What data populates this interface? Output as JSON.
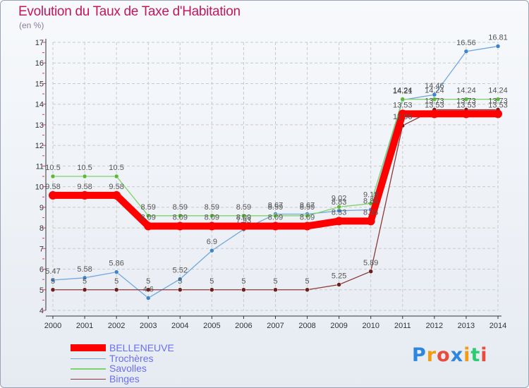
{
  "chart_data": {
    "type": "line",
    "title": "Evolution du Taux de Taxe d'Habitation",
    "ylabel": "(en %)",
    "xlabel": "",
    "ylim": [
      4,
      17
    ],
    "yticks": [
      4,
      5,
      6,
      7,
      8,
      9,
      10,
      11,
      12,
      13,
      14,
      15,
      16,
      17
    ],
    "categories": [
      "2000",
      "2001",
      "2002",
      "2003",
      "2004",
      "2005",
      "2006",
      "2007",
      "2008",
      "2009",
      "2010",
      "2011",
      "2012",
      "2013",
      "2014"
    ],
    "grid": true,
    "legend_position": "bottom-left",
    "series": [
      {
        "name": "BELLENEUVE",
        "color": "#ff0000",
        "emphasis": true,
        "values": [
          9.58,
          9.58,
          9.58,
          8.09,
          8.09,
          8.09,
          8.09,
          8.09,
          8.09,
          8.33,
          8.33,
          13.53,
          13.53,
          13.53,
          13.53
        ],
        "labels": [
          "9.58",
          "9.58",
          "9.58",
          "8.09",
          "8.09",
          "8.09",
          "8.09",
          "8.09",
          "8.09",
          "8.33",
          "8.33",
          "13.53",
          "13.53",
          "13.53",
          "13.53"
        ]
      },
      {
        "name": "Trochères",
        "color": "#6fa8dc",
        "point_color": "#3d85c6",
        "values": [
          5.47,
          5.58,
          5.86,
          4.6,
          5.52,
          6.9,
          7.93,
          8.67,
          8.67,
          8.83,
          8.88,
          14.21,
          14.46,
          16.56,
          16.81
        ],
        "labels": [
          "5.47",
          "5.58",
          "5.86",
          "4.6",
          "5.52",
          "6.9",
          "7.93",
          "8.67",
          "8.67",
          "8.83",
          "8.88",
          "14.21",
          "14.46",
          "16.56",
          "16.81"
        ]
      },
      {
        "name": "Savolles",
        "color": "#7ed36a",
        "point_color": "#5cb83c",
        "values": [
          10.5,
          10.5,
          10.5,
          8.59,
          8.59,
          8.59,
          8.59,
          8.59,
          8.59,
          9.02,
          9.18,
          14.24,
          14.24,
          14.24,
          14.24
        ],
        "labels": [
          "10.5",
          "10.5",
          "10.5",
          "8.59",
          "8.59",
          "8.59",
          "8.59",
          "8.59",
          "8.59",
          "9.02",
          "9.18",
          "14.24",
          "14.24",
          "14.24",
          "14.24"
        ]
      },
      {
        "name": "Binges",
        "color": "#8b3a3a",
        "point_color": "#6b1f1f",
        "values": [
          5,
          5,
          5,
          5,
          5,
          5,
          5,
          5,
          5,
          5.25,
          5.89,
          12.96,
          13.73,
          13.73,
          13.73
        ],
        "labels": [
          "5",
          "5",
          "5",
          "5",
          "5",
          "5",
          "5",
          "5",
          "5",
          "5.25",
          "5.89",
          "12.96",
          "13.73",
          "13.73",
          "13.73"
        ]
      }
    ]
  },
  "logo": {
    "text": "Proxiti",
    "colors": [
      "#2e86de",
      "#f39c12",
      "#e74c3c",
      "#2e86de",
      "#f39c12",
      "#2ecc71",
      "#e74c3c"
    ]
  }
}
